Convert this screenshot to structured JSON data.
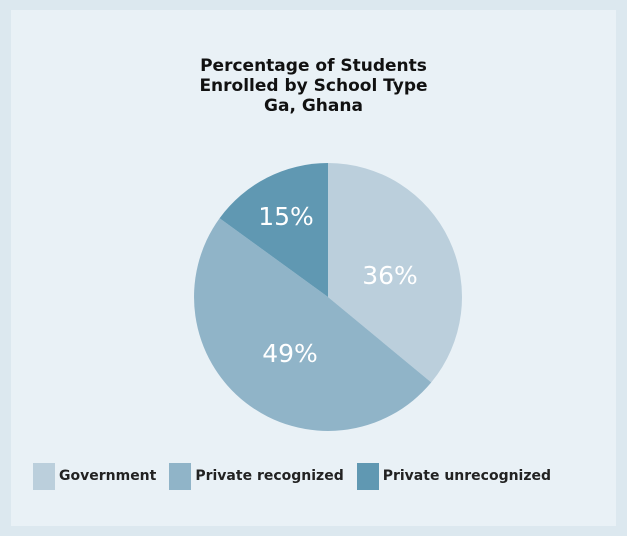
{
  "chart_data": {
    "type": "pie",
    "title_lines": [
      "Percentage of Students",
      "Enrolled by School Type",
      "Ga, Ghana"
    ],
    "slices": [
      {
        "label": "Government",
        "value": 36,
        "display": "36%",
        "color": "#bbcfdc"
      },
      {
        "label": "Private recognized",
        "value": 49,
        "display": "49%",
        "color": "#90b4c8"
      },
      {
        "label": "Private unrecognized",
        "value": 15,
        "display": "15%",
        "color": "#6098b2"
      }
    ],
    "legend_placement": "bottom"
  },
  "colors": {
    "background": "#dce8ef",
    "card": "#e9f1f6",
    "slice_label": "#ffffff"
  }
}
